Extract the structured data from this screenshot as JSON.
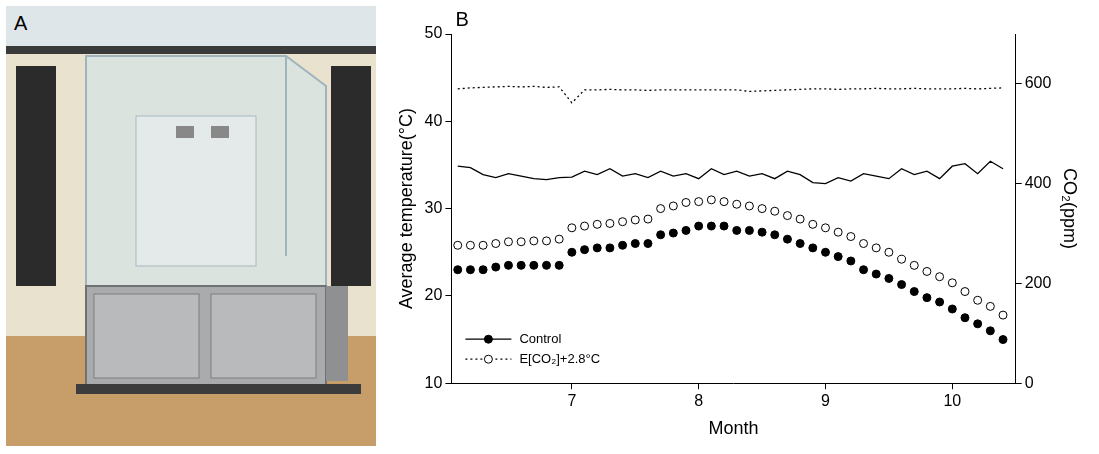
{
  "panel_a": {
    "label": "A"
  },
  "chart_data": {
    "type": "scatter",
    "panel_label": "B",
    "x_label": "Month",
    "y_label": "Average temperature(°C)",
    "y2_label": "CO₂(ppm)",
    "xlim": [
      6.05,
      10.5
    ],
    "xticks": [
      7,
      8,
      9,
      10
    ],
    "ylim": [
      10,
      50
    ],
    "yticks": [
      10,
      20,
      30,
      40,
      50
    ],
    "y2lim": [
      0,
      700
    ],
    "y2ticks": [
      0,
      200,
      400,
      600
    ],
    "grid": false,
    "legend": "lower left",
    "x": [
      6.1,
      6.2,
      6.3,
      6.4,
      6.5,
      6.6,
      6.7,
      6.8,
      6.9,
      7.0,
      7.1,
      7.2,
      7.3,
      7.4,
      7.5,
      7.6,
      7.7,
      7.8,
      7.9,
      8.0,
      8.1,
      8.2,
      8.3,
      8.4,
      8.5,
      8.6,
      8.7,
      8.8,
      8.9,
      9.0,
      9.1,
      9.2,
      9.3,
      9.4,
      9.5,
      9.6,
      9.7,
      9.8,
      9.9,
      10.0,
      10.1,
      10.2,
      10.3,
      10.4
    ],
    "series": [
      {
        "name": "Control",
        "color": "#000000",
        "marker": "circle",
        "line_style": "none",
        "values": [
          23.0,
          23.0,
          23.0,
          23.3,
          23.5,
          23.5,
          23.5,
          23.5,
          23.5,
          25.0,
          25.3,
          25.5,
          25.5,
          25.8,
          26.0,
          26.0,
          27.0,
          27.2,
          27.5,
          28.0,
          28.0,
          28.0,
          27.5,
          27.5,
          27.3,
          27.0,
          26.5,
          26.0,
          25.5,
          25.0,
          24.5,
          24.0,
          23.0,
          22.5,
          22.0,
          21.3,
          20.5,
          19.8,
          19.3,
          18.5,
          17.5,
          16.8,
          16.0,
          15.0
        ]
      },
      {
        "name": "E[CO₂]+2.8°C",
        "color": "#000000",
        "marker": "open_circle",
        "line_style": "none",
        "values": [
          25.8,
          25.8,
          25.8,
          26.0,
          26.2,
          26.2,
          26.3,
          26.3,
          26.5,
          27.8,
          28.0,
          28.2,
          28.3,
          28.5,
          28.7,
          28.8,
          30.0,
          30.3,
          30.7,
          30.8,
          31.0,
          30.8,
          30.5,
          30.3,
          30.0,
          29.7,
          29.2,
          28.8,
          28.2,
          27.8,
          27.3,
          26.8,
          26.0,
          25.5,
          25.0,
          24.2,
          23.5,
          22.8,
          22.2,
          21.5,
          20.5,
          19.5,
          18.8,
          17.8
        ]
      },
      {
        "name": "Control",
        "color": "#000000",
        "marker": "none",
        "line_style": "solid",
        "axis": "y2",
        "values": [
          435,
          432,
          418,
          412,
          420,
          415,
          410,
          408,
          412,
          413,
          425,
          418,
          430,
          415,
          420,
          412,
          425,
          415,
          420,
          410,
          430,
          418,
          425,
          415,
          420,
          410,
          425,
          418,
          402,
          400,
          412,
          405,
          420,
          415,
          410,
          430,
          418,
          425,
          410,
          435,
          440,
          420,
          445,
          430
        ]
      },
      {
        "name": "E[CO₂]+2.8°C",
        "color": "#000000",
        "marker": "none",
        "line_style": "dotted",
        "axis": "y2",
        "values": [
          590,
          592,
          593,
          594,
          595,
          594,
          595,
          593,
          594,
          562,
          588,
          588,
          589,
          588,
          588,
          587,
          588,
          588,
          588,
          588,
          588,
          588,
          588,
          585,
          586,
          587,
          588,
          589,
          590,
          590,
          589,
          590,
          590,
          591,
          590,
          590,
          591,
          590,
          590,
          590,
          591,
          590,
          591,
          592
        ]
      }
    ]
  }
}
